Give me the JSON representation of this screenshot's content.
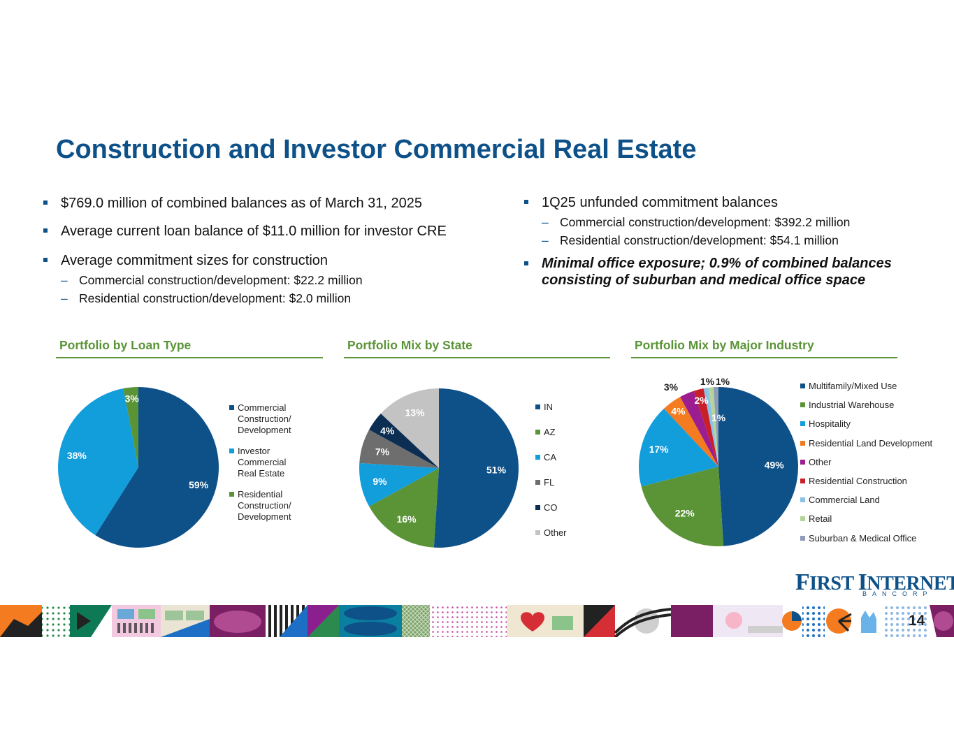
{
  "title": "Construction and Investor Commercial Real Estate",
  "left_bullets": [
    {
      "text": "$769.0 million of combined balances as of March 31, 2025",
      "subs": []
    },
    {
      "text": "Average current loan balance of $11.0 million for investor CRE",
      "subs": []
    },
    {
      "text": "Average commitment sizes for construction",
      "subs": [
        "Commercial construction/development: $22.2 million",
        "Residential construction/development: $2.0 million"
      ]
    }
  ],
  "right_bullets": [
    {
      "text": "1Q25 unfunded commitment balances",
      "subs": [
        "Commercial construction/development: $392.2 million",
        "Residential construction/development: $54.1 million"
      ]
    },
    {
      "text": "Minimal office exposure; 0.9% of combined balances consisting of suburban and medical office space",
      "emphasis": true,
      "subs": []
    }
  ],
  "chart_data": [
    {
      "type": "pie",
      "title": "Portfolio by Loan Type",
      "categories": [
        "Commercial Construction/ Development",
        "Investor Commercial Real Estate",
        "Residential Construction/ Development"
      ],
      "values": [
        59,
        38,
        3
      ],
      "labels": [
        "59%",
        "38%",
        "3%"
      ],
      "colors": [
        "#0e5189",
        "#129ddb",
        "#5a9437"
      ],
      "label_colors": [
        "#ffffff",
        "#ffffff",
        "#ffffff"
      ],
      "legend": "right"
    },
    {
      "type": "pie",
      "title": "Portfolio Mix by State",
      "categories": [
        "IN",
        "AZ",
        "CA",
        "FL",
        "CO",
        "Other"
      ],
      "values": [
        51,
        16,
        9,
        7,
        4,
        13
      ],
      "labels": [
        "51%",
        "16%",
        "9%",
        "7%",
        "4%",
        "13%"
      ],
      "colors": [
        "#0e5189",
        "#5a9437",
        "#129ddb",
        "#6e6e6e",
        "#0b2e52",
        "#c3c3c3"
      ],
      "label_colors": [
        "#ffffff",
        "#ffffff",
        "#ffffff",
        "#ffffff",
        "#ffffff",
        "#ffffff"
      ],
      "legend": "right"
    },
    {
      "type": "pie",
      "title": "Portfolio Mix by Major Industry",
      "categories": [
        "Multifamily/Mixed Use",
        "Industrial Warehouse",
        "Hospitality",
        "Residential Land Development",
        "Other",
        "Residential Construction",
        "Commercial Land",
        "Retail",
        "Suburban & Medical Office"
      ],
      "values": [
        49,
        22,
        17,
        4,
        3,
        2,
        1,
        1,
        1
      ],
      "labels": [
        "49%",
        "22%",
        "17%",
        "4%",
        "3%",
        "2%",
        "1%",
        "1%",
        "1%"
      ],
      "colors": [
        "#0e5189",
        "#5a9437",
        "#129ddb",
        "#f47b20",
        "#9b1d8f",
        "#c91f26",
        "#8cc2e6",
        "#b5d49a",
        "#8d9cb8"
      ],
      "label_colors": [
        "#ffffff",
        "#ffffff",
        "#ffffff",
        "#ffffff",
        "#222222",
        "#ffffff",
        "#ffffff",
        "#222222",
        "#222222"
      ],
      "legend": "right"
    }
  ],
  "logo": {
    "name_first": "F",
    "name_rest": "IRST ",
    "name_second": "I",
    "name_rest2": "NTERNET",
    "sub": "BANCORP"
  },
  "page_number": "14"
}
